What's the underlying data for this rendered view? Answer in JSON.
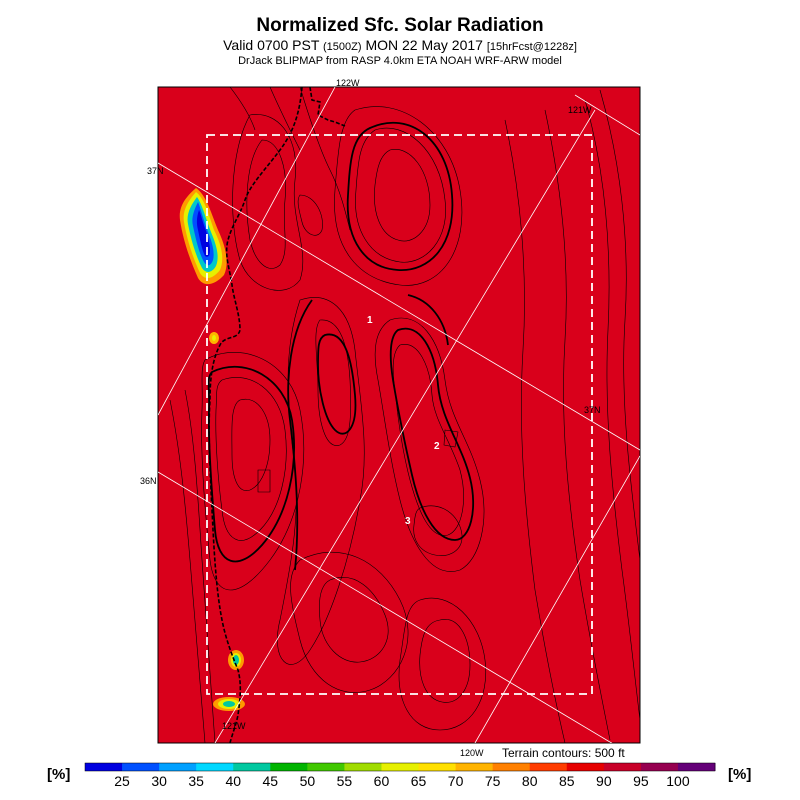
{
  "header": {
    "title": "Normalized Sfc. Solar Radiation",
    "valid_prefix": "Valid 0700 PST",
    "utc": "(1500Z)",
    "date": "MON 22 May 2017",
    "forecast": "[15hrFcst@1228z]",
    "source": "DrJack BLIPMAP from RASP 4.0km ETA NOAH WRF-ARW model"
  },
  "map": {
    "background_color": "#d9001b",
    "latitude_labels": [
      "37N",
      "37N",
      "36N"
    ],
    "longitude_labels": [
      "122W",
      "121W",
      "121W",
      "120W"
    ],
    "point_labels": [
      "1",
      "2",
      "3"
    ]
  },
  "legend": {
    "unit_left": "[%]",
    "unit_right": "[%]",
    "ticks": [
      "25",
      "30",
      "35",
      "40",
      "45",
      "50",
      "55",
      "60",
      "65",
      "70",
      "75",
      "80",
      "85",
      "90",
      "95",
      "100"
    ],
    "colors": [
      "#0000e0",
      "#0050ff",
      "#00a0ff",
      "#00d8ff",
      "#00c8a0",
      "#00b400",
      "#40c800",
      "#a0dc00",
      "#e6f000",
      "#ffe000",
      "#ffb400",
      "#ff8000",
      "#ff3c00",
      "#e60000",
      "#c80028",
      "#960050",
      "#640078"
    ],
    "terrain_note": "Terrain contours: 500 ft"
  }
}
